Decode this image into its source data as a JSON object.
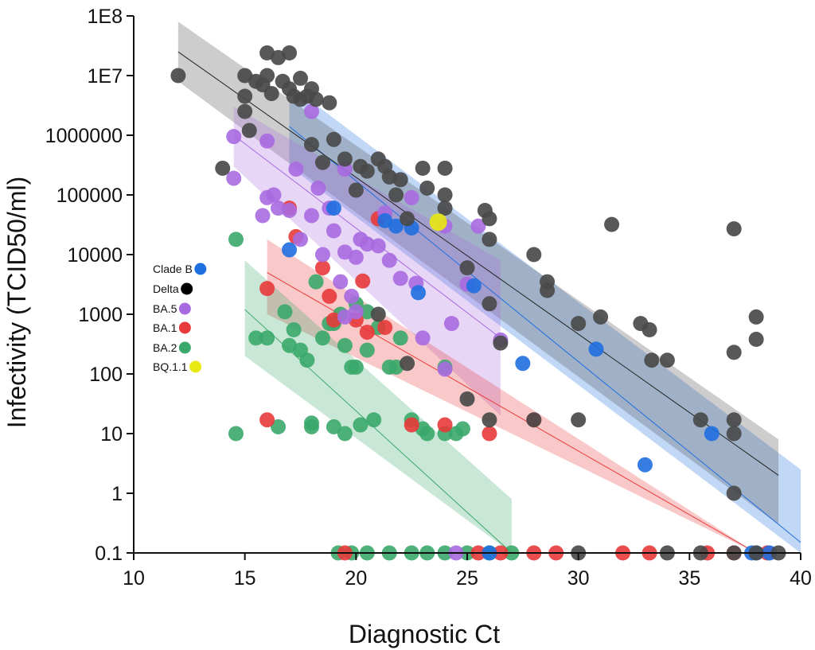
{
  "chart_data": {
    "type": "scatter",
    "xlabel": "Diagnostic Ct",
    "ylabel": "Infectivity (TCID50/ml)",
    "xlim": [
      10,
      40
    ],
    "ylim": [
      0.1,
      100000000
    ],
    "yscale": "log",
    "xticks": [
      "10",
      "15",
      "20",
      "25",
      "30",
      "35",
      "40"
    ],
    "yticks": [
      "0.1",
      "1",
      "10",
      "100",
      "1000",
      "10000",
      "100000",
      "1000000",
      "1E7",
      "1E8"
    ],
    "legend_position": "left-middle",
    "series": [
      {
        "name": "Clade B",
        "color": "#1f6fe0",
        "fit": {
          "x": [
            17,
            40
          ],
          "y": [
            1400000,
            0.15
          ]
        },
        "band": {
          "x": [
            17,
            40
          ],
          "lower": [
            300000,
            0.008
          ],
          "upper": [
            7000000,
            2.5
          ]
        },
        "points": [
          [
            17.0,
            12000
          ],
          [
            19.0,
            60000
          ],
          [
            21.3,
            37000
          ],
          [
            21.8,
            30000
          ],
          [
            22.5,
            28000
          ],
          [
            22.8,
            2300
          ],
          [
            25.3,
            3000
          ],
          [
            27.5,
            150
          ],
          [
            30.8,
            260
          ],
          [
            33.0,
            3
          ],
          [
            36.0,
            10
          ],
          [
            37.8,
            0.1
          ],
          [
            38.0,
            0.1
          ],
          [
            38.6,
            0.1
          ],
          [
            26.0,
            0.1
          ]
        ]
      },
      {
        "name": "Delta",
        "color": "#4a4a4a",
        "fit": {
          "x": [
            12,
            39
          ],
          "y": [
            25000000,
            2
          ]
        },
        "band": {
          "x": [
            12,
            39
          ],
          "lower": [
            8000000,
            0.3
          ],
          "upper": [
            80000000,
            8
          ]
        },
        "points": [
          [
            12.0,
            10000000
          ],
          [
            14.0,
            280000
          ],
          [
            15.0,
            10000000
          ],
          [
            15.0,
            4500000
          ],
          [
            15.0,
            2500000
          ],
          [
            15.2,
            1200000
          ],
          [
            15.5,
            8000000
          ],
          [
            15.8,
            7000000
          ],
          [
            16.0,
            24000000
          ],
          [
            16.0,
            10000000
          ],
          [
            16.2,
            5000000
          ],
          [
            16.5,
            20000000
          ],
          [
            16.7,
            8000000
          ],
          [
            17.0,
            24000000
          ],
          [
            17.0,
            6000000
          ],
          [
            17.2,
            4500000
          ],
          [
            17.5,
            9000000
          ],
          [
            17.5,
            4000000
          ],
          [
            17.8,
            4500000
          ],
          [
            18.0,
            6000000
          ],
          [
            18.0,
            700000
          ],
          [
            18.2,
            4000000
          ],
          [
            18.5,
            350000
          ],
          [
            18.8,
            3500000
          ],
          [
            19.0,
            850000
          ],
          [
            19.5,
            400000
          ],
          [
            20.0,
            120000
          ],
          [
            20.2,
            300000
          ],
          [
            20.5,
            250000
          ],
          [
            21.0,
            400000
          ],
          [
            21.3,
            300000
          ],
          [
            21.5,
            200000
          ],
          [
            21.8,
            100000
          ],
          [
            22.0,
            180000
          ],
          [
            22.3,
            40000
          ],
          [
            23.0,
            280000
          ],
          [
            23.2,
            130000
          ],
          [
            24.0,
            280000
          ],
          [
            24.0,
            100000
          ],
          [
            24.0,
            60000
          ],
          [
            25.0,
            6000
          ],
          [
            25.8,
            55000
          ],
          [
            26.0,
            40000
          ],
          [
            26.0,
            18000
          ],
          [
            26.0,
            1500
          ],
          [
            26.5,
            330
          ],
          [
            28.0,
            10000
          ],
          [
            28.6,
            3500
          ],
          [
            28.6,
            2500
          ],
          [
            30.0,
            700
          ],
          [
            31.0,
            900
          ],
          [
            31.5,
            32000
          ],
          [
            32.8,
            700
          ],
          [
            33.2,
            550
          ],
          [
            33.3,
            170
          ],
          [
            34.0,
            170
          ],
          [
            35.5,
            17
          ],
          [
            37.0,
            27000
          ],
          [
            37.0,
            230
          ],
          [
            37.0,
            17
          ],
          [
            37.0,
            10
          ],
          [
            37.0,
            1
          ],
          [
            38.0,
            900
          ],
          [
            38.0,
            380
          ],
          [
            21.0,
            1000
          ],
          [
            22.3,
            150
          ],
          [
            25.0,
            38
          ],
          [
            26.0,
            17
          ],
          [
            28.0,
            17
          ],
          [
            30.0,
            17
          ],
          [
            30.0,
            0.1
          ],
          [
            34.0,
            0.1
          ],
          [
            35.5,
            0.1
          ],
          [
            37.0,
            0.1
          ],
          [
            38.0,
            0.1
          ],
          [
            39.0,
            0.1
          ]
        ]
      },
      {
        "name": "BA.5",
        "color": "#a86ae0",
        "fit": {
          "x": [
            14.5,
            26.5
          ],
          "y": [
            1000000,
            400
          ]
        },
        "band": {
          "x": [
            14.5,
            26.5
          ],
          "lower": [
            300000,
            20
          ]
        },
        "band_upper": [
          3000000,
          8000
        ],
        "points": [
          [
            14.5,
            950000
          ],
          [
            14.5,
            190000
          ],
          [
            15.8,
            45000
          ],
          [
            16.0,
            800000
          ],
          [
            16.0,
            90000
          ],
          [
            16.3,
            100000
          ],
          [
            16.5,
            60000
          ],
          [
            17.0,
            55000
          ],
          [
            17.3,
            270000
          ],
          [
            17.5,
            18000
          ],
          [
            18.0,
            2500000
          ],
          [
            18.0,
            45000
          ],
          [
            18.3,
            130000
          ],
          [
            18.5,
            10000
          ],
          [
            18.8,
            60000
          ],
          [
            19.0,
            25000
          ],
          [
            19.3,
            3500
          ],
          [
            19.5,
            270000
          ],
          [
            19.5,
            11000
          ],
          [
            19.8,
            2000
          ],
          [
            20.0,
            9000
          ],
          [
            20.2,
            18000
          ],
          [
            20.5,
            15000
          ],
          [
            21.0,
            14000
          ],
          [
            21.3,
            50000
          ],
          [
            21.5,
            8000
          ],
          [
            22.0,
            4000
          ],
          [
            22.5,
            90000
          ],
          [
            22.7,
            3300
          ],
          [
            23.0,
            400
          ],
          [
            24.0,
            120
          ],
          [
            24.0,
            30000
          ],
          [
            24.3,
            700
          ],
          [
            25.0,
            3200
          ],
          [
            25.5,
            30000
          ],
          [
            26.5,
            370
          ],
          [
            19.5,
            900
          ],
          [
            20.0,
            1100
          ],
          [
            24.5,
            0.1
          ]
        ]
      },
      {
        "name": "BA.1",
        "color": "#e83a3a",
        "fit": {
          "x": [
            16,
            38
          ],
          "y": [
            5000,
            0.1
          ]
        },
        "band": {
          "x": [
            16,
            38
          ],
          "lower": [
            1000,
            0.03
          ],
          "upper": [
            18000,
            0.1
          ]
        },
        "points": [
          [
            16.0,
            2700
          ],
          [
            16.0,
            17
          ],
          [
            17.0,
            60000
          ],
          [
            17.3,
            20000
          ],
          [
            18.5,
            6000
          ],
          [
            18.8,
            2000
          ],
          [
            19.0,
            800
          ],
          [
            20.0,
            800
          ],
          [
            20.3,
            3600
          ],
          [
            20.5,
            500
          ],
          [
            21.0,
            40000
          ],
          [
            21.3,
            600
          ],
          [
            22.5,
            14
          ],
          [
            24.0,
            14
          ],
          [
            26.0,
            10
          ],
          [
            28.0,
            17
          ],
          [
            19.5,
            0.1
          ],
          [
            25.5,
            0.1
          ],
          [
            26.5,
            0.1
          ],
          [
            28.0,
            0.1
          ],
          [
            29.0,
            0.1
          ],
          [
            32.0,
            0.1
          ],
          [
            33.2,
            0.1
          ],
          [
            35.8,
            0.1
          ],
          [
            37.0,
            0.1
          ],
          [
            38.5,
            0.1
          ]
        ]
      },
      {
        "name": "BA.2",
        "color": "#3aa86a",
        "fit": {
          "x": [
            15,
            27
          ],
          "y": [
            1200,
            0.1
          ]
        },
        "band": {
          "x": [
            15,
            27
          ],
          "lower": [
            200,
            0.1
          ],
          "upper": [
            8000,
            0.8
          ]
        },
        "points": [
          [
            14.6,
            18000
          ],
          [
            14.6,
            10
          ],
          [
            15.5,
            400
          ],
          [
            16.0,
            400
          ],
          [
            16.5,
            13
          ],
          [
            16.8,
            1100
          ],
          [
            17.0,
            300
          ],
          [
            17.2,
            550
          ],
          [
            17.5,
            250
          ],
          [
            17.8,
            170
          ],
          [
            18.0,
            15
          ],
          [
            18.0,
            13
          ],
          [
            18.2,
            3500
          ],
          [
            18.5,
            400
          ],
          [
            18.8,
            700
          ],
          [
            19.0,
            700
          ],
          [
            19.0,
            13
          ],
          [
            19.3,
            1000
          ],
          [
            19.5,
            300
          ],
          [
            19.5,
            10
          ],
          [
            19.8,
            130
          ],
          [
            20.0,
            1500
          ],
          [
            20.0,
            130
          ],
          [
            20.2,
            14
          ],
          [
            20.5,
            1100
          ],
          [
            20.5,
            250
          ],
          [
            20.8,
            17
          ],
          [
            21.0,
            600
          ],
          [
            21.5,
            130
          ],
          [
            21.8,
            130
          ],
          [
            22.0,
            400
          ],
          [
            22.5,
            17
          ],
          [
            23.0,
            12
          ],
          [
            23.2,
            10
          ],
          [
            24.0,
            130
          ],
          [
            24.0,
            10
          ],
          [
            24.5,
            10
          ],
          [
            24.8,
            12
          ],
          [
            19.2,
            0.1
          ],
          [
            19.8,
            0.1
          ],
          [
            20.5,
            0.1
          ],
          [
            21.5,
            0.1
          ],
          [
            22.5,
            0.1
          ],
          [
            23.2,
            0.1
          ],
          [
            24.0,
            0.1
          ],
          [
            25.0,
            0.1
          ],
          [
            26.0,
            0.1
          ],
          [
            27.0,
            0.1
          ]
        ]
      },
      {
        "name": "BQ.1.1",
        "color": "#e8e812",
        "points": [
          [
            23.7,
            35000
          ]
        ]
      }
    ]
  }
}
